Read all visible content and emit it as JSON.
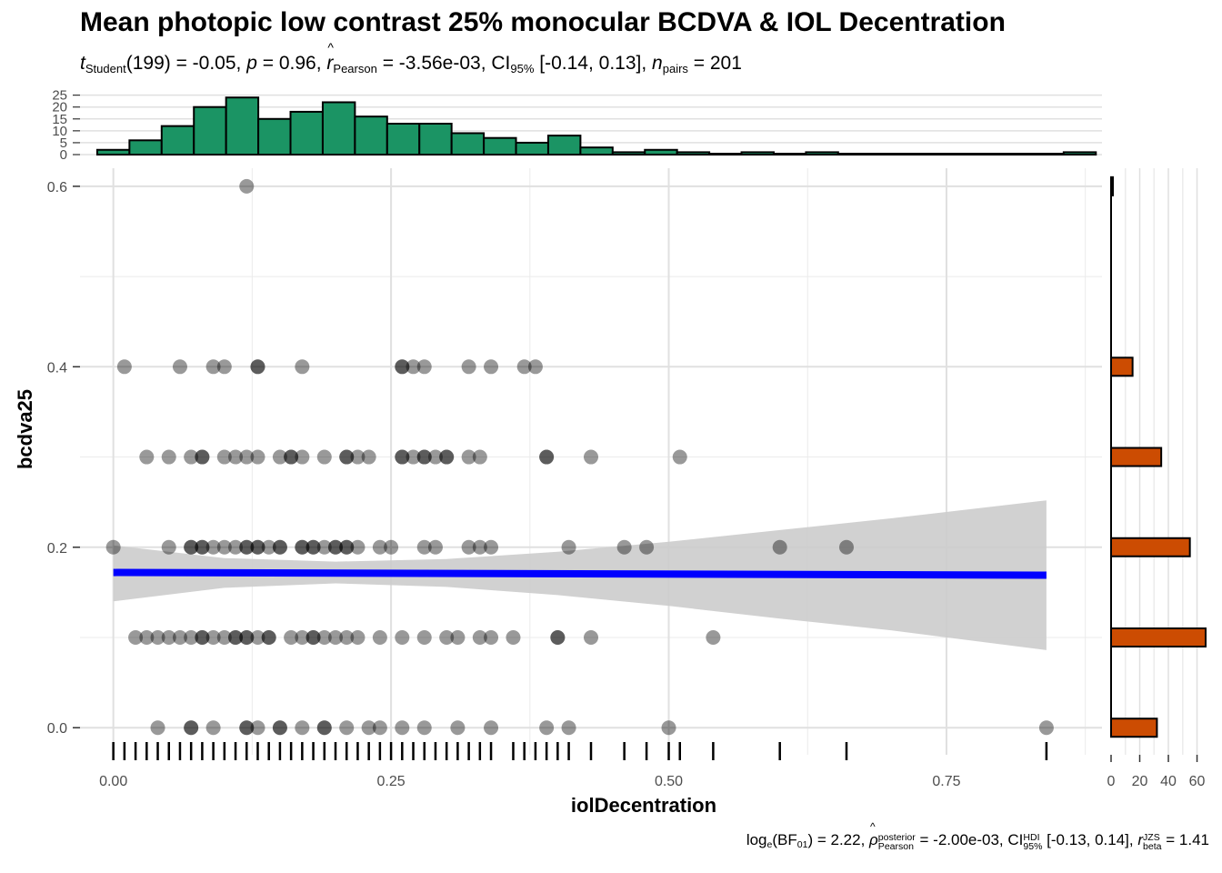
{
  "title": "Mean photopic low contrast 25% monocular BCDVA & IOL Decentration",
  "subtitle": {
    "t_sym": "t",
    "t_sub": "Student",
    "t_text": "(199) = -0.05, ",
    "p_sym": "p",
    "p_text": " = 0.96, ",
    "r_sym": "r",
    "r_sub": "Pearson",
    "r_text": " = -3.56e-03, CI",
    "ci_sub": "95%",
    "ci_text": " [-0.14, 0.13], ",
    "n_sym": "n",
    "n_sub": "pairs",
    "n_text": " = 201"
  },
  "caption": {
    "log_text": "log",
    "log_sub": "e",
    "bf_text": "(BF",
    "bf_sub": "01",
    "bf_val": ") = 2.22, ",
    "rho_sym": "ρ",
    "rho_sup": "posterior",
    "rho_sub": "Pearson",
    "rho_val": " = -2.00e-03, CI",
    "ci_sup": "HDI",
    "ci_sub": "95%",
    "ci_val": " [-0.13, 0.14], ",
    "r_sym": "r",
    "r_sup": "JZS",
    "r_sub": "beta",
    "r_val": " = 1.41"
  },
  "chart_data": {
    "type": "scatter",
    "xlabel": "iolDecentration",
    "ylabel": "bcdva25",
    "xlim": [
      -0.03,
      0.89
    ],
    "ylim": [
      -0.03,
      0.62
    ],
    "x_ticks": [
      0.0,
      0.25,
      0.5,
      0.75
    ],
    "x_tick_labels": [
      "0.00",
      "0.25",
      "0.50",
      "0.75"
    ],
    "y_ticks": [
      0.0,
      0.2,
      0.4,
      0.6
    ],
    "y_tick_labels": [
      "0.0",
      "0.2",
      "0.4",
      "0.6"
    ],
    "grid": true,
    "point_color": "#000000",
    "point_alpha": 0.4,
    "points": [
      {
        "x": 0.12,
        "y": 0.6
      },
      {
        "x": 0.01,
        "y": 0.4
      },
      {
        "x": 0.06,
        "y": 0.4
      },
      {
        "x": 0.09,
        "y": 0.4
      },
      {
        "x": 0.1,
        "y": 0.4
      },
      {
        "x": 0.13,
        "y": 0.4
      },
      {
        "x": 0.13,
        "y": 0.4
      },
      {
        "x": 0.17,
        "y": 0.4
      },
      {
        "x": 0.26,
        "y": 0.4
      },
      {
        "x": 0.26,
        "y": 0.4
      },
      {
        "x": 0.27,
        "y": 0.4
      },
      {
        "x": 0.28,
        "y": 0.4
      },
      {
        "x": 0.32,
        "y": 0.4
      },
      {
        "x": 0.34,
        "y": 0.4
      },
      {
        "x": 0.37,
        "y": 0.4
      },
      {
        "x": 0.38,
        "y": 0.4
      },
      {
        "x": 0.03,
        "y": 0.3
      },
      {
        "x": 0.05,
        "y": 0.3
      },
      {
        "x": 0.07,
        "y": 0.3
      },
      {
        "x": 0.08,
        "y": 0.3
      },
      {
        "x": 0.08,
        "y": 0.3
      },
      {
        "x": 0.1,
        "y": 0.3
      },
      {
        "x": 0.11,
        "y": 0.3
      },
      {
        "x": 0.12,
        "y": 0.3
      },
      {
        "x": 0.13,
        "y": 0.3
      },
      {
        "x": 0.15,
        "y": 0.3
      },
      {
        "x": 0.16,
        "y": 0.3
      },
      {
        "x": 0.16,
        "y": 0.3
      },
      {
        "x": 0.17,
        "y": 0.3
      },
      {
        "x": 0.19,
        "y": 0.3
      },
      {
        "x": 0.21,
        "y": 0.3
      },
      {
        "x": 0.21,
        "y": 0.3
      },
      {
        "x": 0.22,
        "y": 0.3
      },
      {
        "x": 0.23,
        "y": 0.3
      },
      {
        "x": 0.26,
        "y": 0.3
      },
      {
        "x": 0.26,
        "y": 0.3
      },
      {
        "x": 0.27,
        "y": 0.3
      },
      {
        "x": 0.28,
        "y": 0.3
      },
      {
        "x": 0.28,
        "y": 0.3
      },
      {
        "x": 0.29,
        "y": 0.3
      },
      {
        "x": 0.3,
        "y": 0.3
      },
      {
        "x": 0.3,
        "y": 0.3
      },
      {
        "x": 0.32,
        "y": 0.3
      },
      {
        "x": 0.33,
        "y": 0.3
      },
      {
        "x": 0.39,
        "y": 0.3
      },
      {
        "x": 0.39,
        "y": 0.3
      },
      {
        "x": 0.43,
        "y": 0.3
      },
      {
        "x": 0.51,
        "y": 0.3
      },
      {
        "x": 0.0,
        "y": 0.2
      },
      {
        "x": 0.05,
        "y": 0.2
      },
      {
        "x": 0.07,
        "y": 0.2
      },
      {
        "x": 0.07,
        "y": 0.2
      },
      {
        "x": 0.08,
        "y": 0.2
      },
      {
        "x": 0.08,
        "y": 0.2
      },
      {
        "x": 0.09,
        "y": 0.2
      },
      {
        "x": 0.1,
        "y": 0.2
      },
      {
        "x": 0.11,
        "y": 0.2
      },
      {
        "x": 0.12,
        "y": 0.2
      },
      {
        "x": 0.12,
        "y": 0.2
      },
      {
        "x": 0.13,
        "y": 0.2
      },
      {
        "x": 0.13,
        "y": 0.2
      },
      {
        "x": 0.14,
        "y": 0.2
      },
      {
        "x": 0.15,
        "y": 0.2
      },
      {
        "x": 0.15,
        "y": 0.2
      },
      {
        "x": 0.17,
        "y": 0.2
      },
      {
        "x": 0.17,
        "y": 0.2
      },
      {
        "x": 0.18,
        "y": 0.2
      },
      {
        "x": 0.18,
        "y": 0.2
      },
      {
        "x": 0.19,
        "y": 0.2
      },
      {
        "x": 0.2,
        "y": 0.2
      },
      {
        "x": 0.2,
        "y": 0.2
      },
      {
        "x": 0.21,
        "y": 0.2
      },
      {
        "x": 0.21,
        "y": 0.2
      },
      {
        "x": 0.22,
        "y": 0.2
      },
      {
        "x": 0.24,
        "y": 0.2
      },
      {
        "x": 0.25,
        "y": 0.2
      },
      {
        "x": 0.28,
        "y": 0.2
      },
      {
        "x": 0.29,
        "y": 0.2
      },
      {
        "x": 0.32,
        "y": 0.2
      },
      {
        "x": 0.33,
        "y": 0.2
      },
      {
        "x": 0.34,
        "y": 0.2
      },
      {
        "x": 0.41,
        "y": 0.2
      },
      {
        "x": 0.46,
        "y": 0.2
      },
      {
        "x": 0.48,
        "y": 0.2
      },
      {
        "x": 0.6,
        "y": 0.2
      },
      {
        "x": 0.66,
        "y": 0.2
      },
      {
        "x": 0.02,
        "y": 0.1
      },
      {
        "x": 0.03,
        "y": 0.1
      },
      {
        "x": 0.04,
        "y": 0.1
      },
      {
        "x": 0.05,
        "y": 0.1
      },
      {
        "x": 0.06,
        "y": 0.1
      },
      {
        "x": 0.07,
        "y": 0.1
      },
      {
        "x": 0.08,
        "y": 0.1
      },
      {
        "x": 0.08,
        "y": 0.1
      },
      {
        "x": 0.09,
        "y": 0.1
      },
      {
        "x": 0.1,
        "y": 0.1
      },
      {
        "x": 0.11,
        "y": 0.1
      },
      {
        "x": 0.11,
        "y": 0.1
      },
      {
        "x": 0.12,
        "y": 0.1
      },
      {
        "x": 0.12,
        "y": 0.1
      },
      {
        "x": 0.13,
        "y": 0.1
      },
      {
        "x": 0.14,
        "y": 0.1
      },
      {
        "x": 0.14,
        "y": 0.1
      },
      {
        "x": 0.16,
        "y": 0.1
      },
      {
        "x": 0.17,
        "y": 0.1
      },
      {
        "x": 0.18,
        "y": 0.1
      },
      {
        "x": 0.18,
        "y": 0.1
      },
      {
        "x": 0.19,
        "y": 0.1
      },
      {
        "x": 0.2,
        "y": 0.1
      },
      {
        "x": 0.21,
        "y": 0.1
      },
      {
        "x": 0.22,
        "y": 0.1
      },
      {
        "x": 0.24,
        "y": 0.1
      },
      {
        "x": 0.26,
        "y": 0.1
      },
      {
        "x": 0.28,
        "y": 0.1
      },
      {
        "x": 0.3,
        "y": 0.1
      },
      {
        "x": 0.31,
        "y": 0.1
      },
      {
        "x": 0.33,
        "y": 0.1
      },
      {
        "x": 0.34,
        "y": 0.1
      },
      {
        "x": 0.36,
        "y": 0.1
      },
      {
        "x": 0.4,
        "y": 0.1
      },
      {
        "x": 0.4,
        "y": 0.1
      },
      {
        "x": 0.43,
        "y": 0.1
      },
      {
        "x": 0.54,
        "y": 0.1
      },
      {
        "x": 0.04,
        "y": 0.0
      },
      {
        "x": 0.07,
        "y": 0.0
      },
      {
        "x": 0.07,
        "y": 0.0
      },
      {
        "x": 0.09,
        "y": 0.0
      },
      {
        "x": 0.12,
        "y": 0.0
      },
      {
        "x": 0.12,
        "y": 0.0
      },
      {
        "x": 0.13,
        "y": 0.0
      },
      {
        "x": 0.15,
        "y": 0.0
      },
      {
        "x": 0.15,
        "y": 0.0
      },
      {
        "x": 0.17,
        "y": 0.0
      },
      {
        "x": 0.19,
        "y": 0.0
      },
      {
        "x": 0.19,
        "y": 0.0
      },
      {
        "x": 0.21,
        "y": 0.0
      },
      {
        "x": 0.23,
        "y": 0.0
      },
      {
        "x": 0.24,
        "y": 0.0
      },
      {
        "x": 0.26,
        "y": 0.0
      },
      {
        "x": 0.28,
        "y": 0.0
      },
      {
        "x": 0.31,
        "y": 0.0
      },
      {
        "x": 0.34,
        "y": 0.0
      },
      {
        "x": 0.39,
        "y": 0.0
      },
      {
        "x": 0.41,
        "y": 0.0
      },
      {
        "x": 0.5,
        "y": 0.0
      },
      {
        "x": 0.84,
        "y": 0.0
      }
    ],
    "fit_line": {
      "color": "#0000ff",
      "x": [
        0.0,
        0.84
      ],
      "y": [
        0.172,
        0.169
      ]
    },
    "confidence_band": {
      "color": "#cccccc",
      "x": [
        0.0,
        0.1,
        0.2,
        0.3,
        0.4,
        0.5,
        0.6,
        0.7,
        0.84
      ],
      "upper": [
        0.202,
        0.188,
        0.184,
        0.187,
        0.195,
        0.206,
        0.219,
        0.232,
        0.252
      ],
      "lower": [
        0.14,
        0.155,
        0.16,
        0.156,
        0.147,
        0.135,
        0.121,
        0.108,
        0.086
      ]
    },
    "x_rug": [
      0.0,
      0.01,
      0.02,
      0.03,
      0.04,
      0.05,
      0.06,
      0.07,
      0.08,
      0.09,
      0.1,
      0.11,
      0.12,
      0.13,
      0.14,
      0.15,
      0.16,
      0.17,
      0.18,
      0.19,
      0.2,
      0.21,
      0.22,
      0.23,
      0.24,
      0.25,
      0.26,
      0.27,
      0.28,
      0.29,
      0.3,
      0.31,
      0.32,
      0.33,
      0.34,
      0.36,
      0.37,
      0.38,
      0.39,
      0.4,
      0.41,
      0.43,
      0.46,
      0.48,
      0.5,
      0.51,
      0.54,
      0.6,
      0.66,
      0.84
    ],
    "top_histogram": {
      "fill": "#1b9464",
      "bin_width": 0.029,
      "bin_start": -0.0145,
      "counts": [
        2,
        6,
        12,
        20,
        24,
        15,
        18,
        22,
        16,
        13,
        13,
        9,
        7,
        5,
        8,
        3,
        1,
        2,
        1,
        0,
        1,
        0,
        1,
        0,
        0,
        0,
        0,
        0,
        0,
        0,
        1
      ],
      "y_ticks": [
        0,
        5,
        10,
        15,
        20,
        25
      ],
      "ylim": [
        0,
        26
      ]
    },
    "right_histogram": {
      "fill": "#cc4c02",
      "bins": [
        {
          "y": 0.0,
          "count": 32
        },
        {
          "y": 0.1,
          "count": 66
        },
        {
          "y": 0.2,
          "count": 55
        },
        {
          "y": 0.3,
          "count": 35
        },
        {
          "y": 0.4,
          "count": 15
        },
        {
          "y": 0.6,
          "count": 1
        }
      ],
      "x_ticks": [
        0,
        20,
        40,
        60
      ],
      "x_tick_labels": [
        "0",
        "20",
        "40",
        "60"
      ],
      "xlim": [
        0,
        66
      ]
    }
  }
}
